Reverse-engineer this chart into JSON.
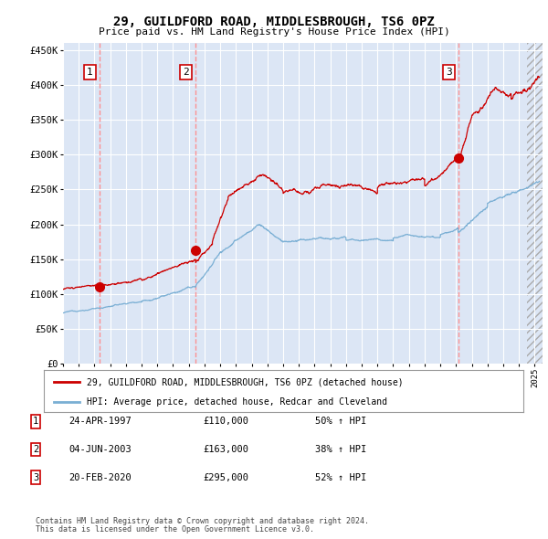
{
  "title": "29, GUILDFORD ROAD, MIDDLESBROUGH, TS6 0PZ",
  "subtitle": "Price paid vs. HM Land Registry's House Price Index (HPI)",
  "legend_label_red": "29, GUILDFORD ROAD, MIDDLESBROUGH, TS6 0PZ (detached house)",
  "legend_label_blue": "HPI: Average price, detached house, Redcar and Cleveland",
  "transactions": [
    {
      "num": 1,
      "date": "24-APR-1997",
      "price": 110000,
      "pct": "50%",
      "year": 1997.31
    },
    {
      "num": 2,
      "date": "04-JUN-2003",
      "price": 163000,
      "pct": "38%",
      "year": 2003.43
    },
    {
      "num": 3,
      "date": "20-FEB-2020",
      "price": 295000,
      "pct": "52%",
      "year": 2020.13
    }
  ],
  "footnote1": "Contains HM Land Registry data © Crown copyright and database right 2024.",
  "footnote2": "This data is licensed under the Open Government Licence v3.0.",
  "ylim": [
    0,
    460000
  ],
  "xlim_start": 1995.0,
  "xlim_end": 2025.5,
  "background_color": "#dce6f5",
  "fig_bg": "#ffffff",
  "red_color": "#cc0000",
  "blue_color": "#7aafd4",
  "grid_color": "#ffffff",
  "vline_color": "#ff8888"
}
